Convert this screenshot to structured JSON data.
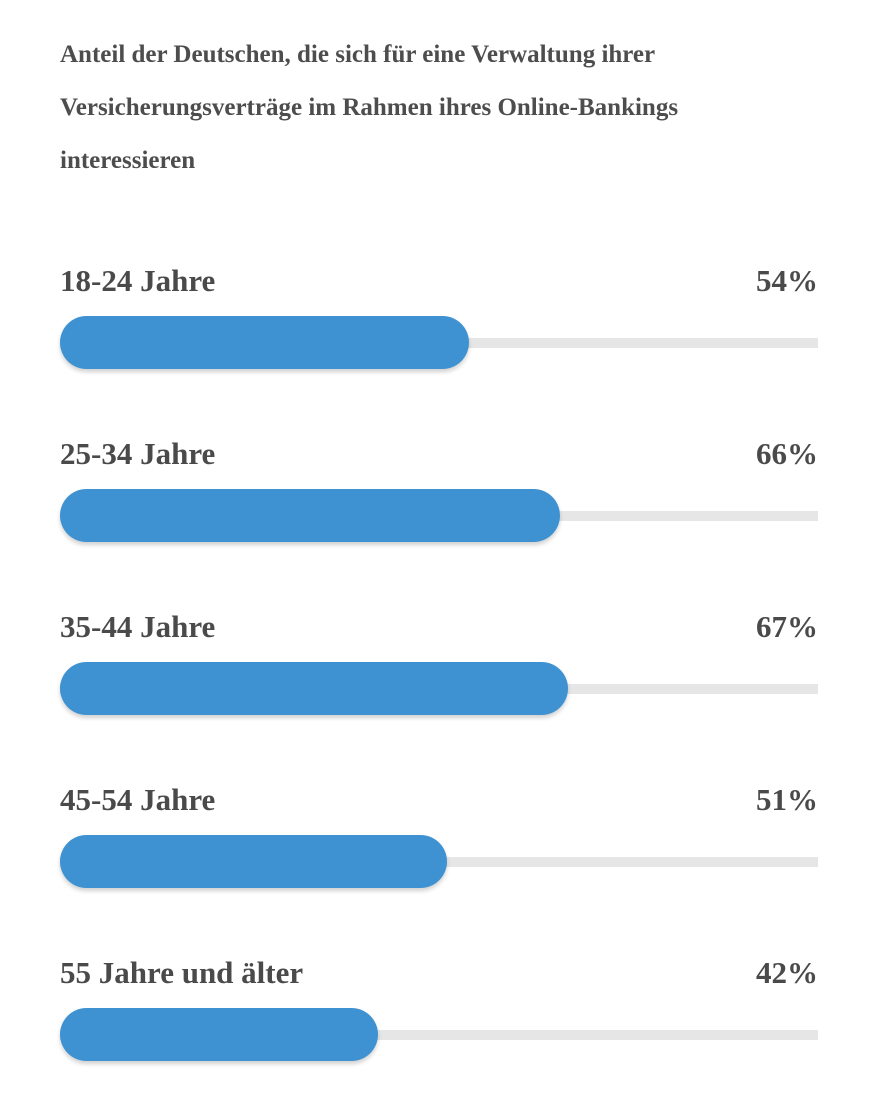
{
  "chart_data": {
    "type": "bar",
    "orientation": "horizontal",
    "title": "Anteil der Deutschen, die sich für eine Verwaltung ihrer Versicherungsverträge im Rahmen ihres Online-Bankings interessieren",
    "xlabel": "",
    "ylabel": "",
    "xlim": [
      0,
      100
    ],
    "categories": [
      "18-24 Jahre",
      "25-34 Jahre",
      "35-44 Jahre",
      "45-54 Jahre",
      "55 Jahre und älter"
    ],
    "values": [
      54,
      66,
      67,
      51,
      42
    ],
    "value_labels": [
      "54%",
      "66%",
      "67%",
      "51%",
      "42%"
    ],
    "bar_color": "#3f92d2",
    "track_color": "#e6e6e6",
    "grid": false,
    "legend": "none"
  }
}
